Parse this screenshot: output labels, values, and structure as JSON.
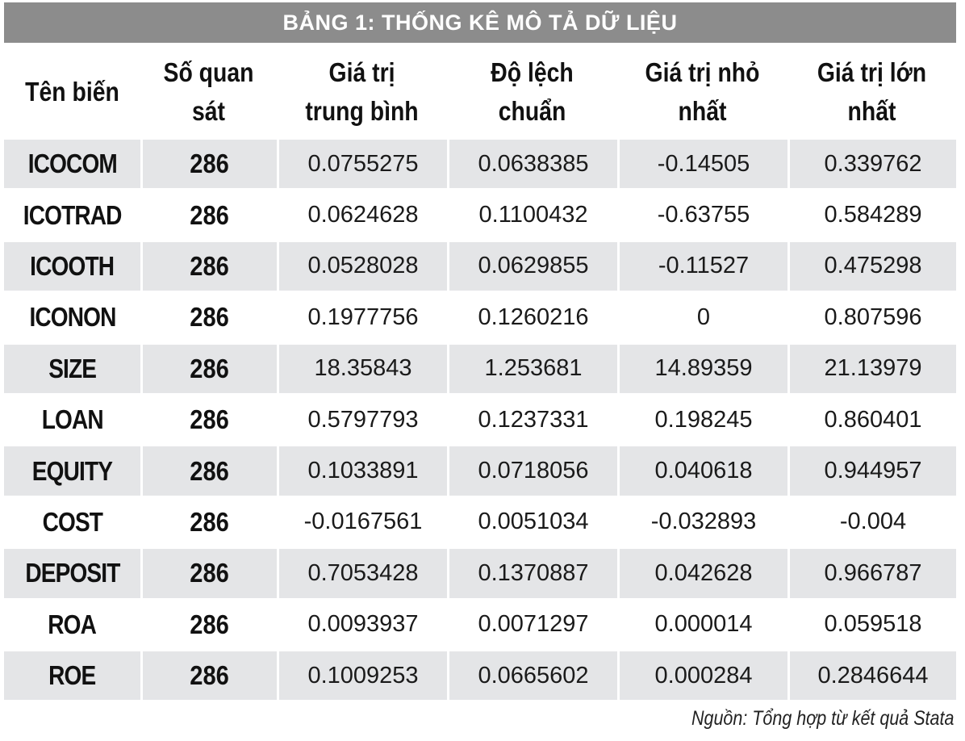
{
  "table": {
    "title": "BẢNG 1: THỐNG KÊ MÔ TẢ DỮ LIỆU",
    "headers": [
      [
        "Tên biến",
        ""
      ],
      [
        "Số quan",
        "sát"
      ],
      [
        "Giá trị",
        "trung bình"
      ],
      [
        "Độ lệch",
        "chuẩn"
      ],
      [
        "Giá trị nhỏ",
        "nhất"
      ],
      [
        "Giá trị lớn",
        "nhất"
      ]
    ],
    "rows": [
      [
        "ICOCOM",
        "286",
        "0.0755275",
        "0.0638385",
        "-0.14505",
        "0.339762"
      ],
      [
        "ICOTRAD",
        "286",
        "0.0624628",
        "0.1100432",
        "-0.63755",
        "0.584289"
      ],
      [
        "ICOOTH",
        "286",
        "0.0528028",
        "0.0629855",
        "-0.11527",
        "0.475298"
      ],
      [
        "ICONON",
        "286",
        "0.1977756",
        "0.1260216",
        "0",
        "0.807596"
      ],
      [
        "SIZE",
        "286",
        "18.35843",
        "1.253681",
        "14.89359",
        "21.13979"
      ],
      [
        "LOAN",
        "286",
        "0.5797793",
        "0.1237331",
        "0.198245",
        "0.860401"
      ],
      [
        "EQUITY",
        "286",
        "0.1033891",
        "0.0718056",
        "0.040618",
        "0.944957"
      ],
      [
        "COST",
        "286",
        "-0.0167561",
        "0.0051034",
        "-0.032893",
        "-0.004"
      ],
      [
        "DEPOSIT",
        "286",
        "0.7053428",
        "0.1370887",
        "0.042628",
        "0.966787"
      ],
      [
        "ROA",
        "286",
        "0.0093937",
        "0.0071297",
        "0.000014",
        "0.059518"
      ],
      [
        "ROE",
        "286",
        "0.1009253",
        "0.0665602",
        "0.000284",
        "0.2846644"
      ]
    ],
    "source_note": "Nguồn: Tổng hợp từ kết quả Stata"
  },
  "colors": {
    "title_background": "#8c8c8c",
    "title_text": "#ffffff",
    "stripe": "#e4e5e7"
  }
}
